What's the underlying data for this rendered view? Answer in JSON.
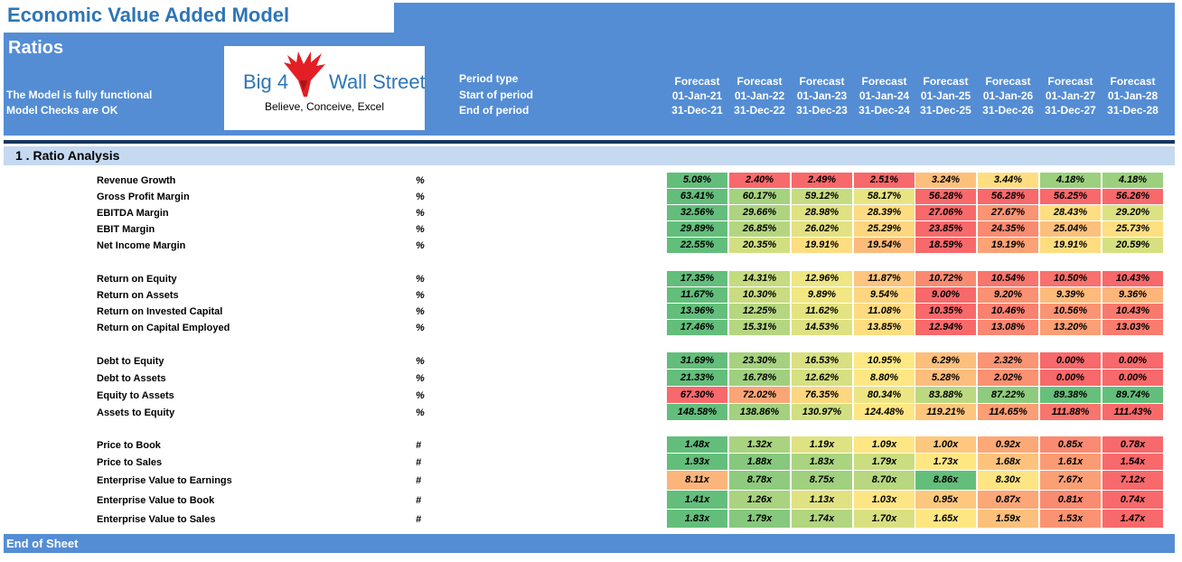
{
  "title": "Economic Value Added Model",
  "sheet": "Ratios",
  "status": [
    "The Model is fully functional",
    "Model Checks are OK"
  ],
  "logo": {
    "big": "Big 4",
    "wall": "Wall Street",
    "tagline": "Believe, Conceive, Excel"
  },
  "period_labels": [
    "Period type",
    "Start of period",
    "End of period"
  ],
  "periods": [
    {
      "type": "Forecast",
      "start": "01-Jan-21",
      "end": "31-Dec-21"
    },
    {
      "type": "Forecast",
      "start": "01-Jan-22",
      "end": "31-Dec-22"
    },
    {
      "type": "Forecast",
      "start": "01-Jan-23",
      "end": "31-Dec-23"
    },
    {
      "type": "Forecast",
      "start": "01-Jan-24",
      "end": "31-Dec-24"
    },
    {
      "type": "Forecast",
      "start": "01-Jan-25",
      "end": "31-Dec-25"
    },
    {
      "type": "Forecast",
      "start": "01-Jan-26",
      "end": "31-Dec-26"
    },
    {
      "type": "Forecast",
      "start": "01-Jan-27",
      "end": "31-Dec-27"
    },
    {
      "type": "Forecast",
      "start": "01-Jan-28",
      "end": "31-Dec-28"
    }
  ],
  "section": "1 .  Ratio Analysis",
  "groups": [
    {
      "rows": [
        {
          "label": "Revenue Growth",
          "unit": "%",
          "values": [
            "5.08%",
            "2.40%",
            "2.49%",
            "2.51%",
            "3.24%",
            "3.44%",
            "4.18%",
            "4.18%"
          ],
          "colors": [
            "#63be7b",
            "#f8696b",
            "#f8696b",
            "#f8696b",
            "#fdc07c",
            "#fede81",
            "#9cd07f",
            "#9cd07f"
          ]
        },
        {
          "label": "Gross Profit Margin",
          "unit": "%",
          "values": [
            "63.41%",
            "60.17%",
            "59.12%",
            "58.17%",
            "56.28%",
            "56.28%",
            "56.25%",
            "56.26%"
          ],
          "colors": [
            "#63be7b",
            "#a5d27f",
            "#c7dc80",
            "#e9e482",
            "#f8696b",
            "#f8696b",
            "#f8696b",
            "#f8696b"
          ]
        },
        {
          "label": "EBITDA Margin",
          "unit": "%",
          "values": [
            "32.56%",
            "29.66%",
            "28.98%",
            "28.39%",
            "27.06%",
            "27.67%",
            "28.43%",
            "29.20%"
          ],
          "colors": [
            "#63be7b",
            "#aed480",
            "#e0e282",
            "#fedc81",
            "#f8696b",
            "#fa9473",
            "#fede81",
            "#dce182"
          ]
        },
        {
          "label": "EBIT Margin",
          "unit": "%",
          "values": [
            "29.89%",
            "26.85%",
            "26.02%",
            "25.29%",
            "23.85%",
            "24.35%",
            "25.04%",
            "25.73%"
          ],
          "colors": [
            "#63be7b",
            "#b5d680",
            "#e3e282",
            "#fed680",
            "#f8696b",
            "#fa8b71",
            "#fdc07c",
            "#fedf81"
          ]
        },
        {
          "label": "Net Income Margin",
          "unit": "%",
          "values": [
            "22.55%",
            "20.35%",
            "19.91%",
            "19.54%",
            "18.59%",
            "19.19%",
            "19.91%",
            "20.59%"
          ],
          "colors": [
            "#63be7b",
            "#d2df81",
            "#fedd81",
            "#fcbb7b",
            "#f8696b",
            "#fba276",
            "#fedd81",
            "#d6e081"
          ]
        }
      ]
    },
    {
      "rows": [
        {
          "label": "Return on Equity",
          "unit": "%",
          "values": [
            "17.35%",
            "14.31%",
            "12.96%",
            "11.87%",
            "10.72%",
            "10.54%",
            "10.50%",
            "10.43%"
          ],
          "colors": [
            "#63be7b",
            "#c5db80",
            "#eee683",
            "#fdc57d",
            "#f98a71",
            "#f8756d",
            "#f8716c",
            "#f8696b"
          ]
        },
        {
          "label": "Return on Assets",
          "unit": "%",
          "values": [
            "11.67%",
            "10.30%",
            "9.89%",
            "9.54%",
            "9.00%",
            "9.20%",
            "9.39%",
            "9.36%"
          ],
          "colors": [
            "#63be7b",
            "#c9dc81",
            "#f2e783",
            "#fed680",
            "#f8696b",
            "#fa9172",
            "#fdbb7b",
            "#fdb57a"
          ]
        },
        {
          "label": "Return on Invested Capital",
          "unit": "%",
          "values": [
            "13.96%",
            "12.25%",
            "11.62%",
            "11.08%",
            "10.35%",
            "10.46%",
            "10.56%",
            "10.43%"
          ],
          "colors": [
            "#63be7b",
            "#b6d680",
            "#e4e382",
            "#fedb81",
            "#f8696b",
            "#f98170",
            "#fa9473",
            "#f87a6e"
          ]
        },
        {
          "label": "Return on Capital Employed",
          "unit": "%",
          "values": [
            "17.46%",
            "15.31%",
            "14.53%",
            "13.85%",
            "12.94%",
            "13.08%",
            "13.20%",
            "13.03%"
          ],
          "colors": [
            "#63be7b",
            "#b5d680",
            "#dde182",
            "#fedd81",
            "#f8696b",
            "#fa8872",
            "#fb9f75",
            "#f97c6f"
          ]
        }
      ]
    },
    {
      "rows": [
        {
          "label": "Debt to Equity",
          "unit": "%",
          "values": [
            "31.69%",
            "23.30%",
            "16.53%",
            "10.95%",
            "6.29%",
            "2.32%",
            "0.00%",
            "0.00%"
          ],
          "colors": [
            "#63be7b",
            "#a6d27f",
            "#d9e081",
            "#fee883",
            "#fdbf7c",
            "#fb9473",
            "#f8696b",
            "#f8696b"
          ]
        },
        {
          "label": "Debt to Assets",
          "unit": "%",
          "values": [
            "21.33%",
            "16.78%",
            "12.62%",
            "8.80%",
            "5.28%",
            "2.02%",
            "0.00%",
            "0.00%"
          ],
          "colors": [
            "#63be7b",
            "#a0d07f",
            "#d6e081",
            "#fee783",
            "#fdbd7c",
            "#fa9172",
            "#f8696b",
            "#f8696b"
          ]
        },
        {
          "label": "Equity to Assets",
          "unit": "%",
          "values": [
            "67.30%",
            "72.02%",
            "76.35%",
            "80.34%",
            "83.88%",
            "87.22%",
            "89.38%",
            "89.74%"
          ],
          "colors": [
            "#f8696b",
            "#fba576",
            "#fdd780",
            "#ede583",
            "#bcd880",
            "#8ecb7e",
            "#67bf7b",
            "#63be7b"
          ]
        },
        {
          "label": "Assets to Equity",
          "unit": "%",
          "values": [
            "148.58%",
            "138.86%",
            "130.97%",
            "124.48%",
            "119.21%",
            "114.65%",
            "111.88%",
            "111.43%"
          ],
          "colors": [
            "#63be7b",
            "#a3d17f",
            "#d2df81",
            "#fee683",
            "#fdc67d",
            "#fb9e74",
            "#f8756d",
            "#f8696b"
          ]
        }
      ]
    },
    {
      "rows": [
        {
          "label": "Price to Book",
          "unit": "#",
          "values": [
            "1.48x",
            "1.32x",
            "1.19x",
            "1.09x",
            "1.00x",
            "0.92x",
            "0.85x",
            "0.78x"
          ],
          "colors": [
            "#63be7b",
            "#a9d37f",
            "#dfe282",
            "#fee683",
            "#fdc87d",
            "#fca877",
            "#fa8a71",
            "#f8696b"
          ]
        },
        {
          "label": "Price to Sales",
          "unit": "#",
          "values": [
            "1.93x",
            "1.88x",
            "1.83x",
            "1.79x",
            "1.73x",
            "1.68x",
            "1.61x",
            "1.54x"
          ],
          "colors": [
            "#63be7b",
            "#86c87d",
            "#aad480",
            "#cadd81",
            "#fee783",
            "#fdc37c",
            "#fb9b74",
            "#f8696b"
          ]
        },
        {
          "label": "Enterprise Value to Earnings",
          "unit": "#",
          "values": [
            "8.11x",
            "8.78x",
            "8.75x",
            "8.70x",
            "8.86x",
            "8.30x",
            "7.67x",
            "7.12x"
          ],
          "colors": [
            "#fbb57a",
            "#8fcb7e",
            "#a1d07f",
            "#b8d780",
            "#63be7b",
            "#fee583",
            "#fba075",
            "#f8696b"
          ]
        },
        {
          "label": "Enterprise Value to Book",
          "unit": "#",
          "values": [
            "1.41x",
            "1.26x",
            "1.13x",
            "1.03x",
            "0.95x",
            "0.87x",
            "0.81x",
            "0.74x"
          ],
          "colors": [
            "#63be7b",
            "#a9d37f",
            "#e0e282",
            "#fee583",
            "#fdc87d",
            "#fca777",
            "#fa8b71",
            "#f8696b"
          ]
        },
        {
          "label": "Enterprise Value to Sales",
          "unit": "#",
          "values": [
            "1.83x",
            "1.79x",
            "1.74x",
            "1.70x",
            "1.65x",
            "1.59x",
            "1.53x",
            "1.47x"
          ],
          "colors": [
            "#63be7b",
            "#86c87d",
            "#b2d580",
            "#d8e081",
            "#fee683",
            "#fdc07c",
            "#fb9373",
            "#f8696b"
          ]
        }
      ]
    }
  ],
  "footer": "End of Sheet"
}
